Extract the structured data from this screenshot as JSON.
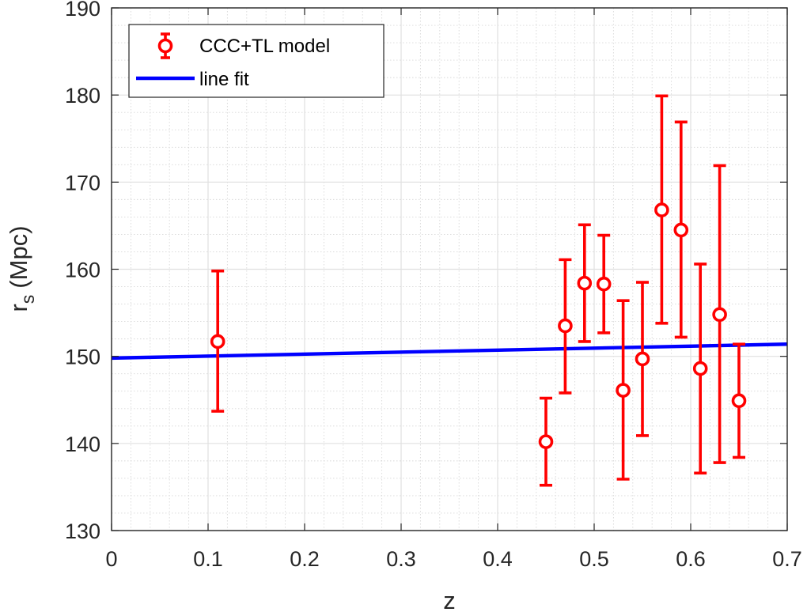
{
  "chart_data": {
    "type": "scatter",
    "xlabel": "z",
    "ylabel_main": "r",
    "ylabel_sub": "s",
    "ylabel_unit": "(Mpc)",
    "xlim": [
      0,
      0.7
    ],
    "ylim": [
      130,
      190
    ],
    "xticks": [
      "0",
      "0.1",
      "0.2",
      "0.3",
      "0.4",
      "0.5",
      "0.6",
      "0.7"
    ],
    "yticks": [
      "130",
      "140",
      "150",
      "160",
      "170",
      "180",
      "190"
    ],
    "grid": true,
    "minor_grid": true,
    "legend_position": "top-left",
    "series": [
      {
        "name": "CCC+TL model",
        "kind": "errorbar",
        "color": "#ff0000",
        "points": [
          {
            "x": 0.11,
            "y": 151.7,
            "low": 143.7,
            "high": 159.8
          },
          {
            "x": 0.45,
            "y": 140.2,
            "low": 135.2,
            "high": 145.2
          },
          {
            "x": 0.47,
            "y": 153.5,
            "low": 145.8,
            "high": 161.1
          },
          {
            "x": 0.49,
            "y": 158.4,
            "low": 151.7,
            "high": 165.1
          },
          {
            "x": 0.51,
            "y": 158.3,
            "low": 152.7,
            "high": 163.9
          },
          {
            "x": 0.53,
            "y": 146.1,
            "low": 135.9,
            "high": 156.4
          },
          {
            "x": 0.55,
            "y": 149.7,
            "low": 140.9,
            "high": 158.5
          },
          {
            "x": 0.57,
            "y": 166.8,
            "low": 153.8,
            "high": 179.9
          },
          {
            "x": 0.59,
            "y": 164.5,
            "low": 152.2,
            "high": 176.9
          },
          {
            "x": 0.61,
            "y": 148.6,
            "low": 136.6,
            "high": 160.6
          },
          {
            "x": 0.63,
            "y": 154.8,
            "low": 137.8,
            "high": 171.9
          },
          {
            "x": 0.65,
            "y": 144.9,
            "low": 138.4,
            "high": 151.4
          }
        ]
      },
      {
        "name": "line fit",
        "kind": "line",
        "color": "#0000ff",
        "x": [
          0,
          0.7
        ],
        "y": [
          149.8,
          151.4
        ]
      }
    ]
  }
}
